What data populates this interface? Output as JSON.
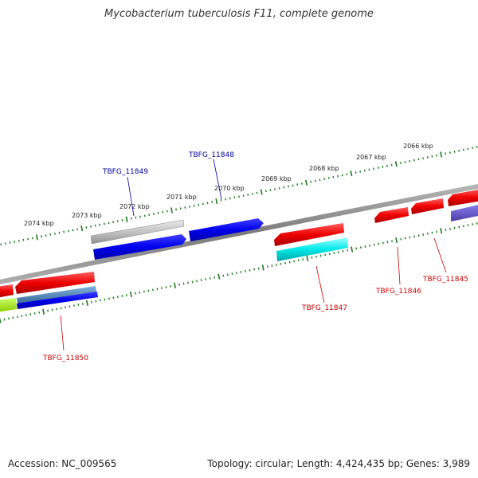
{
  "title": "Mycobacterium tuberculosis F11, complete genome",
  "footer": {
    "accession": "Accession: NC_009565",
    "summary": "Topology: circular; Length: 4,424,435 bp; Genes: 3,989"
  },
  "scale": {
    "ticks": [
      {
        "label": "2074 kbp"
      },
      {
        "label": "2073 kbp"
      },
      {
        "label": "2072 kbp"
      },
      {
        "label": "2071 kbp"
      },
      {
        "label": "2070 kbp"
      },
      {
        "label": "2069 kbp"
      },
      {
        "label": "2068 kbp"
      },
      {
        "label": "2067 kbp"
      },
      {
        "label": "2066 kbp"
      }
    ]
  },
  "genes": [
    {
      "label": "TBFG_11850",
      "strand": "minus",
      "color": "#cc0000"
    },
    {
      "label": "TBFG_11849",
      "strand": "plus",
      "color": "#000099"
    },
    {
      "label": "TBFG_11848",
      "strand": "plus",
      "color": "#000099"
    },
    {
      "label": "TBFG_11847",
      "strand": "minus",
      "color": "#cc0000"
    },
    {
      "label": "TBFG_11846",
      "strand": "minus",
      "color": "#cc0000"
    },
    {
      "label": "TBFG_11845",
      "strand": "minus",
      "color": "#cc0000"
    }
  ],
  "colors": {
    "backbone": "#808080",
    "tick": "#1a7a1a",
    "forward_gene": "#0000ee",
    "reverse_gene": "#ee0000",
    "rna_gene": "#bbbbbb",
    "cyan_feature": "#00e0e0",
    "green_feature": "#99ee00",
    "steel_feature": "#4a7fb0",
    "purple_feature": "#6655cc"
  }
}
